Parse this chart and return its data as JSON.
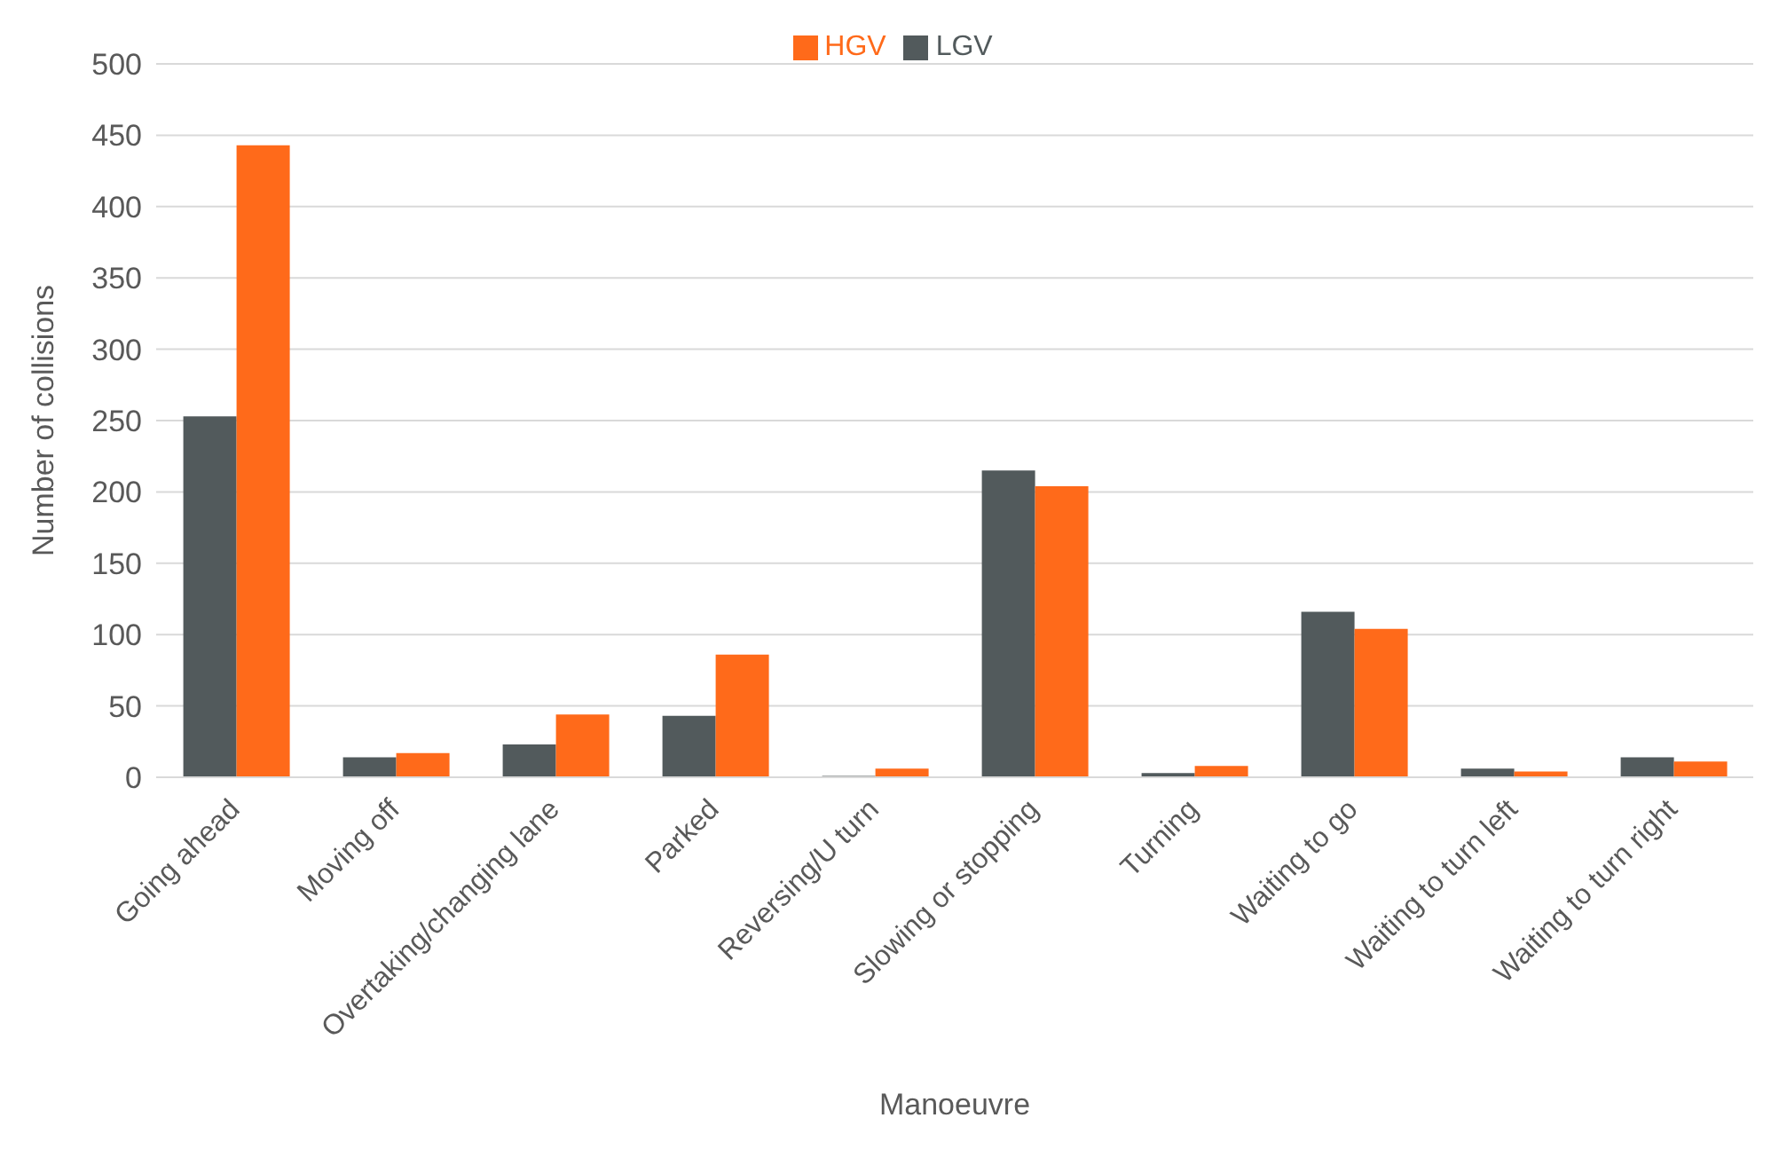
{
  "chart_data": {
    "type": "bar",
    "xlabel": "Manoeuvre",
    "ylabel": "Number of collisions",
    "categories": [
      "Going ahead",
      "Moving off",
      "Overtaking/changing lane",
      "Parked",
      "Reversing/U turn",
      "Slowing or stopping",
      "Turning",
      "Waiting to go",
      "Waiting to turn left",
      "Waiting to turn right"
    ],
    "series": [
      {
        "name": "LGV",
        "color": "#525a5c",
        "values": [
          253,
          14,
          23,
          43,
          1,
          215,
          3,
          116,
          6,
          14
        ]
      },
      {
        "name": "HGV",
        "color": "#ff6a1a",
        "values": [
          443,
          17,
          44,
          86,
          6,
          204,
          8,
          104,
          4,
          11
        ]
      }
    ],
    "ylim": [
      0,
      500
    ],
    "yticks": [
      0,
      50,
      100,
      150,
      200,
      250,
      300,
      350,
      400,
      450,
      500
    ],
    "grid": "y",
    "legend": "top"
  }
}
